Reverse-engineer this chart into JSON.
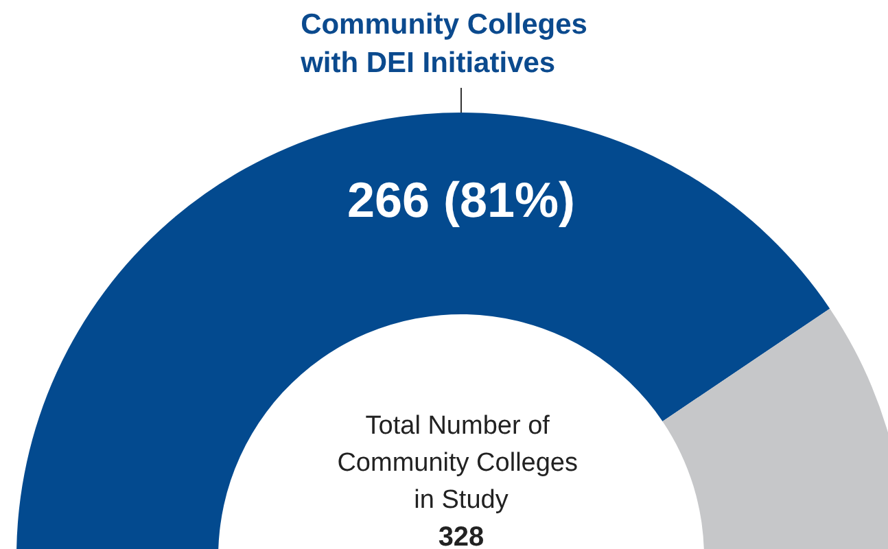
{
  "chart_data": {
    "type": "donut",
    "categories": [
      "Community Colleges with DEI Initiatives",
      null
    ],
    "values": [
      81,
      19
    ],
    "colors": [
      "#034a8f",
      "#c6c7c9"
    ],
    "value_labels": [
      "266 (81%)",
      null
    ],
    "annotations": [
      "Total Number of Community Colleges in Study",
      "328"
    ],
    "legend": false
  }
}
